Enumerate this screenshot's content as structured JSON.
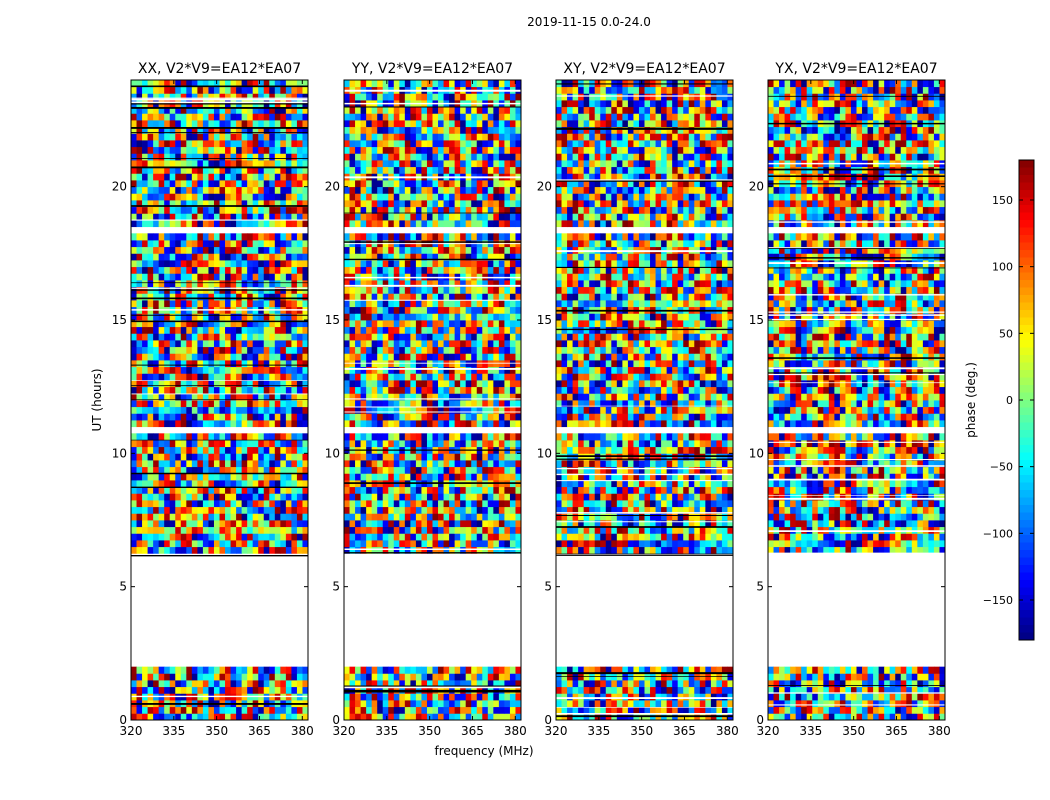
{
  "figure": {
    "suptitle": "2019-11-15 0.0-24.0",
    "xlabel": "frequency (MHz)",
    "ylabel": "UT (hours)"
  },
  "chart_data": {
    "type": "heatmap",
    "title": "2019-11-15 0.0-24.0",
    "xlabel": "frequency (MHz)",
    "ylabel": "UT (hours)",
    "xlim": [
      320,
      382
    ],
    "ylim": [
      0,
      24
    ],
    "xticks": [
      320,
      335,
      350,
      365,
      380
    ],
    "yticks": [
      0,
      5,
      10,
      15,
      20
    ],
    "panels": [
      {
        "title": "XX, V2*V9=EA12*EA07",
        "pol": "XX"
      },
      {
        "title": "YY, V2*V9=EA12*EA07",
        "pol": "YY"
      },
      {
        "title": "XY, V2*V9=EA12*EA07",
        "pol": "XY"
      },
      {
        "title": "YX, V2*V9=EA12*EA07",
        "pol": "YX"
      }
    ],
    "colorbar": {
      "label": "phase (deg.)",
      "range": [
        -180,
        180
      ],
      "ticks": [
        150,
        100,
        50,
        0,
        -50,
        -100,
        -150
      ],
      "tick_labels": [
        "150",
        "100",
        "50",
        "0",
        "−50",
        "−100",
        "−150"
      ],
      "colormap": "jet"
    },
    "data_gaps_ut": [
      [
        1.95,
        6.15
      ],
      [
        10.85,
        11.05
      ],
      [
        18.3,
        18.6
      ],
      [
        19.45,
        19.6
      ],
      [
        22.65,
        22.85
      ]
    ]
  }
}
